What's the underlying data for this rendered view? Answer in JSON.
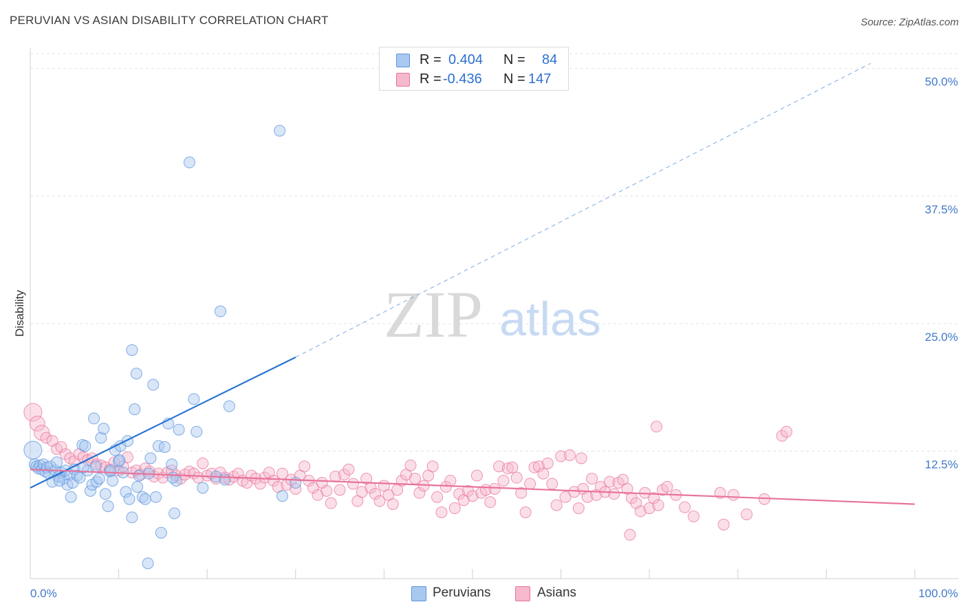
{
  "title": "PERUVIAN VS ASIAN DISABILITY CORRELATION CHART",
  "source": "Source: ZipAtlas.com",
  "watermark": {
    "zip": "ZIP",
    "atlas": "atlas"
  },
  "legend": {
    "rows": [
      {
        "r_label": "R =",
        "r_value": "0.404",
        "n_label": "N =",
        "n_value": "84",
        "color": "#a9c8f0"
      },
      {
        "r_label": "R =",
        "r_value": "-0.436",
        "n_label": "N =",
        "n_value": "147",
        "color": "#f6b8cc"
      }
    ]
  },
  "bottom_legend": [
    {
      "label": "Peruvians",
      "color": "#a9c8f0"
    },
    {
      "label": "Asians",
      "color": "#f6b8cc"
    }
  ],
  "chart_data": {
    "type": "scatter",
    "title": "PERUVIAN VS ASIAN DISABILITY CORRELATION CHART",
    "xlabel": "",
    "ylabel": "Disability",
    "xlim": [
      0,
      100
    ],
    "ylim": [
      0,
      52
    ],
    "x_tick_labels": [
      "0.0%",
      "100.0%"
    ],
    "y_ticks": [
      12.5,
      25.0,
      37.5,
      50.0
    ],
    "y_tick_labels": [
      "12.5%",
      "25.0%",
      "37.5%",
      "50.0%"
    ],
    "grid": true,
    "legend_position": "top-center",
    "series": [
      {
        "name": "Peruvians",
        "color": "#5b93dd",
        "fill": "#a9c8f0",
        "trend": {
          "x0": 0,
          "y0": 8.9,
          "x1": 30,
          "y1": 21.7,
          "dashed_to_x": 95,
          "dashed_to_y": 50.5
        },
        "points": [
          [
            0.3,
            12.6
          ],
          [
            0.5,
            11.2
          ],
          [
            0.7,
            11.0
          ],
          [
            0.9,
            10.8
          ],
          [
            1.1,
            11.1
          ],
          [
            1.3,
            10.7
          ],
          [
            1.5,
            11.2
          ],
          [
            1.7,
            10.5
          ],
          [
            1.9,
            10.9
          ],
          [
            2.1,
            10.3
          ],
          [
            2.3,
            11.0
          ],
          [
            2.5,
            9.5
          ],
          [
            2.8,
            10.6
          ],
          [
            3.0,
            11.4
          ],
          [
            3.2,
            10.0
          ],
          [
            3.5,
            10.4
          ],
          [
            3.8,
            9.8
          ],
          [
            4.0,
            10.6
          ],
          [
            4.2,
            9.2
          ],
          [
            4.5,
            10.2
          ],
          [
            4.8,
            9.4
          ],
          [
            5.0,
            10.7
          ],
          [
            5.3,
            10.1
          ],
          [
            5.6,
            9.9
          ],
          [
            5.9,
            13.1
          ],
          [
            6.2,
            13.0
          ],
          [
            6.5,
            10.6
          ],
          [
            6.8,
            8.6
          ],
          [
            7.0,
            9.2
          ],
          [
            7.2,
            15.7
          ],
          [
            7.5,
            9.5
          ],
          [
            7.8,
            9.8
          ],
          [
            8.0,
            13.8
          ],
          [
            8.3,
            14.7
          ],
          [
            8.5,
            8.3
          ],
          [
            8.8,
            7.1
          ],
          [
            9.0,
            10.5
          ],
          [
            9.3,
            9.6
          ],
          [
            9.6,
            12.6
          ],
          [
            10.0,
            11.5
          ],
          [
            10.2,
            13.0
          ],
          [
            10.5,
            10.4
          ],
          [
            10.8,
            8.5
          ],
          [
            11.0,
            13.5
          ],
          [
            11.2,
            7.8
          ],
          [
            11.5,
            6.0
          ],
          [
            11.8,
            16.6
          ],
          [
            12.0,
            20.1
          ],
          [
            12.3,
            10.1
          ],
          [
            12.7,
            8.0
          ],
          [
            13.0,
            7.8
          ],
          [
            13.3,
            1.5
          ],
          [
            13.6,
            11.8
          ],
          [
            13.9,
            19.0
          ],
          [
            14.2,
            8.0
          ],
          [
            14.5,
            13.0
          ],
          [
            14.8,
            4.5
          ],
          [
            15.2,
            12.9
          ],
          [
            15.6,
            15.2
          ],
          [
            16.0,
            11.2
          ],
          [
            16.3,
            6.4
          ],
          [
            16.5,
            9.6
          ],
          [
            16.8,
            14.6
          ],
          [
            18.0,
            40.8
          ],
          [
            18.5,
            17.6
          ],
          [
            18.8,
            14.4
          ],
          [
            19.5,
            8.9
          ],
          [
            21.0,
            10.0
          ],
          [
            21.5,
            26.2
          ],
          [
            22.5,
            16.9
          ],
          [
            11.5,
            22.4
          ],
          [
            3.3,
            9.6
          ],
          [
            4.6,
            8.0
          ],
          [
            6.0,
            10.9
          ],
          [
            7.4,
            11.0
          ],
          [
            9.1,
            10.6
          ],
          [
            10.1,
            11.6
          ],
          [
            12.1,
            9.0
          ],
          [
            13.4,
            10.3
          ],
          [
            16.1,
            9.9
          ],
          [
            28.2,
            43.9
          ],
          [
            28.5,
            8.1
          ],
          [
            22.0,
            9.7
          ],
          [
            30.0,
            9.4
          ]
        ]
      },
      {
        "name": "Asians",
        "color": "#e8739b",
        "fill": "#f6b8cc",
        "trend": {
          "x0": 0,
          "y0": 10.7,
          "x1": 100,
          "y1": 7.3
        },
        "points": [
          [
            0.3,
            16.3
          ],
          [
            0.8,
            15.2
          ],
          [
            1.3,
            14.3
          ],
          [
            1.8,
            13.8
          ],
          [
            2.5,
            13.5
          ],
          [
            3.0,
            12.7
          ],
          [
            3.5,
            12.9
          ],
          [
            4.0,
            12.2
          ],
          [
            4.5,
            11.8
          ],
          [
            5.0,
            11.5
          ],
          [
            5.5,
            12.2
          ],
          [
            6.0,
            11.9
          ],
          [
            6.5,
            11.6
          ],
          [
            7.0,
            11.8
          ],
          [
            7.5,
            11.2
          ],
          [
            8.0,
            11.1
          ],
          [
            8.5,
            10.9
          ],
          [
            9.0,
            10.7
          ],
          [
            9.5,
            11.4
          ],
          [
            10.0,
            10.6
          ],
          [
            10.5,
            11.0
          ],
          [
            11.0,
            11.9
          ],
          [
            11.5,
            10.4
          ],
          [
            12.0,
            10.6
          ],
          [
            12.5,
            10.2
          ],
          [
            13.0,
            10.8
          ],
          [
            13.5,
            10.5
          ],
          [
            14.0,
            10.0
          ],
          [
            14.5,
            10.3
          ],
          [
            15.0,
            9.9
          ],
          [
            15.5,
            10.4
          ],
          [
            16.0,
            10.6
          ],
          [
            16.5,
            10.1
          ],
          [
            17.0,
            9.8
          ],
          [
            17.5,
            10.2
          ],
          [
            18.0,
            10.5
          ],
          [
            18.5,
            10.3
          ],
          [
            19.0,
            9.9
          ],
          [
            19.5,
            11.3
          ],
          [
            20.0,
            10.1
          ],
          [
            20.5,
            10.3
          ],
          [
            21.0,
            9.8
          ],
          [
            21.5,
            10.4
          ],
          [
            22.0,
            9.9
          ],
          [
            22.5,
            9.7
          ],
          [
            23.0,
            10.0
          ],
          [
            23.5,
            10.3
          ],
          [
            24.0,
            9.6
          ],
          [
            24.5,
            9.4
          ],
          [
            25.0,
            10.1
          ],
          [
            25.5,
            9.8
          ],
          [
            26.0,
            9.3
          ],
          [
            26.5,
            9.9
          ],
          [
            27.0,
            10.4
          ],
          [
            27.5,
            9.6
          ],
          [
            28.0,
            9.0
          ],
          [
            28.5,
            10.3
          ],
          [
            29.0,
            9.2
          ],
          [
            29.5,
            9.7
          ],
          [
            30.0,
            8.8
          ],
          [
            30.5,
            10.1
          ],
          [
            31.0,
            11.0
          ],
          [
            31.5,
            9.6
          ],
          [
            32.0,
            8.9
          ],
          [
            32.5,
            8.2
          ],
          [
            33.0,
            9.4
          ],
          [
            33.5,
            8.6
          ],
          [
            34.0,
            7.4
          ],
          [
            34.5,
            10.0
          ],
          [
            35.0,
            8.7
          ],
          [
            35.5,
            10.2
          ],
          [
            36.0,
            10.7
          ],
          [
            36.5,
            9.3
          ],
          [
            37.0,
            7.6
          ],
          [
            37.5,
            8.5
          ],
          [
            38.0,
            9.8
          ],
          [
            38.5,
            8.9
          ],
          [
            39.0,
            8.3
          ],
          [
            39.5,
            7.6
          ],
          [
            40.0,
            9.1
          ],
          [
            40.5,
            8.2
          ],
          [
            41.0,
            7.3
          ],
          [
            41.5,
            8.7
          ],
          [
            42.0,
            9.6
          ],
          [
            42.5,
            10.2
          ],
          [
            43.0,
            11.1
          ],
          [
            43.5,
            9.8
          ],
          [
            44.0,
            8.4
          ],
          [
            44.5,
            9.1
          ],
          [
            45.0,
            10.1
          ],
          [
            45.5,
            11.0
          ],
          [
            46.0,
            8.0
          ],
          [
            46.5,
            6.5
          ],
          [
            47.0,
            9.0
          ],
          [
            47.5,
            9.6
          ],
          [
            48.0,
            6.9
          ],
          [
            48.5,
            8.3
          ],
          [
            49.0,
            7.7
          ],
          [
            49.5,
            8.6
          ],
          [
            50.0,
            8.1
          ],
          [
            50.5,
            10.1
          ],
          [
            51.0,
            8.4
          ],
          [
            51.5,
            8.7
          ],
          [
            52.0,
            7.5
          ],
          [
            52.5,
            8.8
          ],
          [
            53.0,
            11.0
          ],
          [
            53.5,
            9.6
          ],
          [
            54.0,
            10.8
          ],
          [
            54.5,
            10.9
          ],
          [
            55.0,
            9.9
          ],
          [
            55.5,
            8.4
          ],
          [
            56.0,
            6.5
          ],
          [
            56.5,
            9.3
          ],
          [
            57.0,
            10.9
          ],
          [
            57.5,
            11.0
          ],
          [
            58.0,
            10.3
          ],
          [
            58.5,
            11.3
          ],
          [
            59.0,
            9.3
          ],
          [
            59.5,
            7.2
          ],
          [
            60.0,
            12.0
          ],
          [
            60.5,
            8.0
          ],
          [
            61.0,
            12.1
          ],
          [
            61.5,
            8.5
          ],
          [
            62.0,
            6.9
          ],
          [
            62.5,
            8.8
          ],
          [
            63.0,
            8.0
          ],
          [
            63.5,
            9.8
          ],
          [
            64.0,
            8.2
          ],
          [
            64.5,
            9.0
          ],
          [
            65.0,
            8.5
          ],
          [
            65.5,
            9.5
          ],
          [
            66.0,
            8.3
          ],
          [
            66.5,
            9.4
          ],
          [
            67.0,
            9.7
          ],
          [
            67.5,
            8.8
          ],
          [
            68.0,
            7.9
          ],
          [
            68.5,
            7.4
          ],
          [
            69.0,
            6.6
          ],
          [
            69.5,
            8.4
          ],
          [
            70.0,
            6.9
          ],
          [
            70.5,
            7.9
          ],
          [
            71.0,
            7.2
          ],
          [
            71.5,
            8.7
          ],
          [
            72.0,
            9.0
          ],
          [
            73.0,
            8.2
          ],
          [
            74.0,
            7.0
          ],
          [
            75.0,
            6.1
          ],
          [
            78.0,
            8.4
          ],
          [
            85.0,
            14.0
          ],
          [
            85.5,
            14.4
          ],
          [
            62.3,
            11.8
          ],
          [
            67.8,
            4.3
          ],
          [
            70.8,
            14.9
          ],
          [
            78.4,
            5.3
          ],
          [
            79.5,
            8.2
          ],
          [
            81.0,
            6.3
          ],
          [
            83.0,
            7.8
          ]
        ]
      }
    ]
  }
}
